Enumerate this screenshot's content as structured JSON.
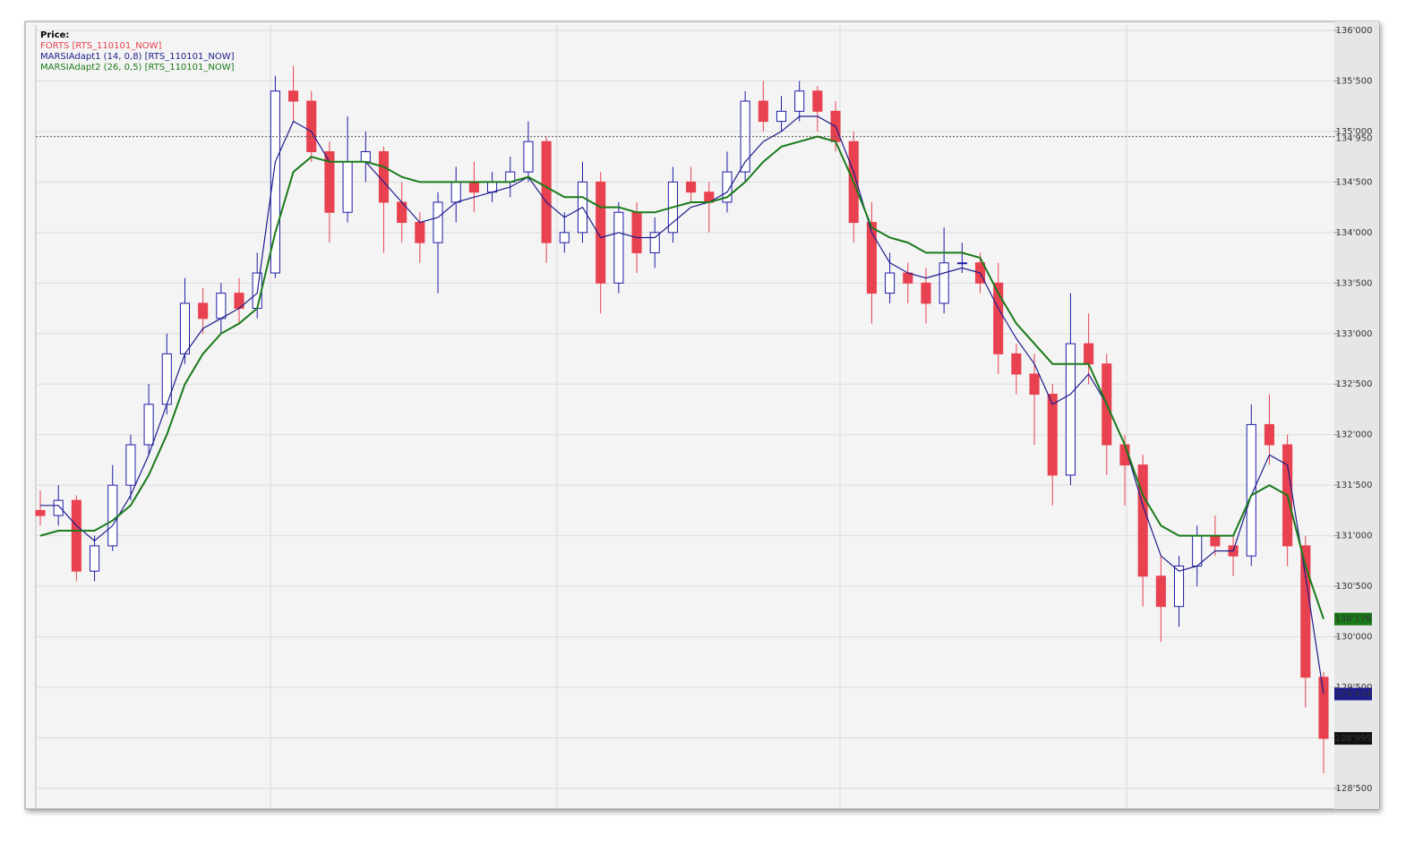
{
  "chart_data": {
    "type": "candlestick",
    "legend_title": "Price:",
    "instrument": "FORTS [RTS_110101_NOW]",
    "up_color": "#1c1ca8",
    "down_color": "#e8414f",
    "ylim": [
      128305,
      136053
    ],
    "yticks": [
      {
        "value": 128500,
        "label": "128'500"
      },
      {
        "value": 129000,
        "label": "129'000"
      },
      {
        "value": 129500,
        "label": "129'500"
      },
      {
        "value": 130000,
        "label": "130'000"
      },
      {
        "value": 130500,
        "label": "130'500"
      },
      {
        "value": 131000,
        "label": "131'000"
      },
      {
        "value": 131500,
        "label": "131'500"
      },
      {
        "value": 132000,
        "label": "132'000"
      },
      {
        "value": 132500,
        "label": "132'500"
      },
      {
        "value": 133000,
        "label": "133'000"
      },
      {
        "value": 133500,
        "label": "133'500"
      },
      {
        "value": 134000,
        "label": "134'000"
      },
      {
        "value": 134500,
        "label": "134'500"
      },
      {
        "value": 135000,
        "label": "135'000"
      },
      {
        "value": 135500,
        "label": "135'500"
      },
      {
        "value": 136000,
        "label": "136'000"
      }
    ],
    "grid": true,
    "price_line": {
      "value": 134950,
      "label": "134'950"
    },
    "last_price": {
      "value": 128995,
      "label": "128'995"
    },
    "open": [
      131250,
      131200,
      131350,
      130650,
      130900,
      131500,
      131900,
      132300,
      132800,
      133300,
      133150,
      133400,
      133250,
      133600,
      135400,
      135300,
      134800,
      134200,
      134700,
      134800,
      134300,
      134100,
      133900,
      134300,
      134500,
      134400,
      134500,
      134600,
      134900,
      133900,
      134000,
      134500,
      133500,
      134200,
      133800,
      134000,
      134500,
      134400,
      134300,
      134600,
      135300,
      135100,
      135200,
      135400,
      135200,
      134900,
      134100,
      133400,
      133600,
      133500,
      133300,
      133700,
      133700,
      133500,
      132800,
      132600,
      132400,
      131600,
      132900,
      132700,
      131900,
      131700,
      130600,
      130300,
      130700,
      131000,
      130900,
      130800,
      132100,
      131900,
      130900,
      129600
    ],
    "high": [
      131450,
      131500,
      131400,
      131000,
      131700,
      132000,
      132500,
      133000,
      133550,
      133450,
      133500,
      133550,
      133800,
      135550,
      135650,
      135400,
      134900,
      135150,
      135000,
      134850,
      134500,
      134200,
      134400,
      134650,
      134700,
      134600,
      134750,
      135100,
      134950,
      134200,
      134700,
      134600,
      134300,
      134300,
      134150,
      134650,
      134650,
      134500,
      134800,
      135400,
      135500,
      135350,
      135500,
      135450,
      135300,
      135000,
      134300,
      133800,
      133700,
      133650,
      134050,
      133900,
      133800,
      133700,
      132900,
      132800,
      132500,
      133400,
      133200,
      132800,
      132000,
      131800,
      130800,
      130800,
      131100,
      131200,
      131000,
      132300,
      132400,
      132000,
      131000,
      129650
    ],
    "low": [
      131100,
      131100,
      130550,
      130550,
      130850,
      131350,
      131800,
      132200,
      132700,
      133000,
      133000,
      133100,
      133150,
      133550,
      135100,
      134700,
      133900,
      134100,
      134500,
      133800,
      133900,
      133700,
      133400,
      134100,
      134200,
      134300,
      134350,
      134500,
      133700,
      133800,
      133900,
      133200,
      133400,
      133600,
      133650,
      133900,
      134300,
      134000,
      134200,
      134500,
      135000,
      135000,
      135100,
      135000,
      134800,
      133900,
      133100,
      133300,
      133300,
      133100,
      133200,
      133600,
      133400,
      132600,
      132400,
      131900,
      131300,
      131500,
      132500,
      131600,
      131300,
      130300,
      129950,
      130100,
      130500,
      130800,
      130600,
      130700,
      131700,
      130700,
      129300,
      128650
    ],
    "close": [
      131200,
      131350,
      130650,
      130900,
      131500,
      131900,
      132300,
      132800,
      133300,
      133150,
      133400,
      133250,
      133600,
      135400,
      135300,
      134800,
      134200,
      134700,
      134800,
      134300,
      134100,
      133900,
      134300,
      134500,
      134400,
      134500,
      134600,
      134900,
      133900,
      134000,
      134500,
      133500,
      134200,
      133800,
      134000,
      134500,
      134400,
      134300,
      134600,
      135300,
      135100,
      135200,
      135400,
      135200,
      134900,
      134100,
      133400,
      133600,
      133500,
      133300,
      133700,
      133700,
      133500,
      132800,
      132600,
      132400,
      131600,
      132900,
      132700,
      131900,
      131700,
      130600,
      130300,
      130700,
      131000,
      130900,
      130800,
      132100,
      131900,
      130900,
      129600,
      128995
    ],
    "series": [
      {
        "name": "MARSIAdapt1 (14, 0,8) [RTS_110101_NOW]",
        "color": "#1c1c8c",
        "last_label": "129'434",
        "values": [
          131300,
          131300,
          131100,
          130950,
          131100,
          131400,
          131800,
          132300,
          132800,
          133050,
          133150,
          133250,
          133400,
          134700,
          135100,
          135000,
          134700,
          134700,
          134700,
          134500,
          134300,
          134100,
          134150,
          134300,
          134350,
          134400,
          134450,
          134550,
          134300,
          134150,
          134250,
          133950,
          134000,
          133950,
          133950,
          134100,
          134250,
          134300,
          134400,
          134700,
          134900,
          135000,
          135150,
          135150,
          135050,
          134600,
          134000,
          133700,
          133600,
          133550,
          133600,
          133650,
          133600,
          133250,
          132950,
          132700,
          132300,
          132400,
          132600,
          132300,
          131900,
          131300,
          130800,
          130650,
          130700,
          130850,
          130850,
          131400,
          131800,
          131700,
          130600,
          129434
        ]
      },
      {
        "name": "MARSIAdapt2 (26, 0,5) [RTS_110101_NOW]",
        "color": "#1a7a1a",
        "last_label": "130'176",
        "values": [
          131000,
          131050,
          131050,
          131050,
          131150,
          131300,
          131600,
          132000,
          132500,
          132800,
          133000,
          133100,
          133250,
          134000,
          134600,
          134750,
          134700,
          134700,
          134700,
          134650,
          134550,
          134500,
          134500,
          134500,
          134500,
          134500,
          134500,
          134550,
          134450,
          134350,
          134350,
          134250,
          134250,
          134200,
          134200,
          134250,
          134300,
          134300,
          134350,
          134500,
          134700,
          134850,
          134900,
          134950,
          134900,
          134500,
          134050,
          133950,
          133900,
          133800,
          133800,
          133800,
          133750,
          133400,
          133100,
          132900,
          132700,
          132700,
          132700,
          132300,
          131900,
          131400,
          131100,
          131000,
          131000,
          131000,
          131000,
          131400,
          131500,
          131400,
          130700,
          130176
        ]
      }
    ]
  }
}
